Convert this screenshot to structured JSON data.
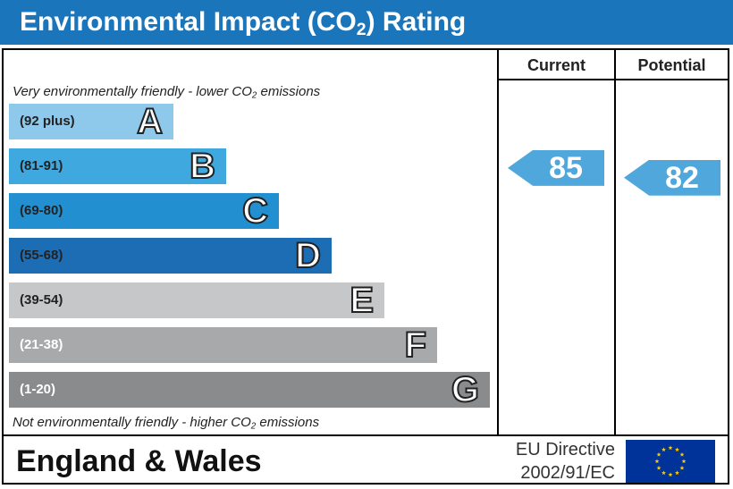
{
  "title_prefix": "Environmental Impact (CO",
  "title_sub": "2",
  "title_suffix": ") Rating",
  "columns": {
    "current": "Current",
    "potential": "Potential"
  },
  "top_note_prefix": "Very environmentally friendly - lower CO",
  "top_note_sub": "2",
  "top_note_suffix": " emissions",
  "bottom_note_prefix": "Not environmentally friendly - higher CO",
  "bottom_note_sub": "2",
  "bottom_note_suffix": " emissions",
  "chart_data": {
    "type": "bar",
    "categories": [
      "A",
      "B",
      "C",
      "D",
      "E",
      "F",
      "G"
    ],
    "bands": [
      {
        "letter": "A",
        "range": "(92 plus)",
        "min": 92,
        "max": 100,
        "color": "#8ec9ec",
        "text_color": "#222222"
      },
      {
        "letter": "B",
        "range": "(81-91)",
        "min": 81,
        "max": 91,
        "color": "#3fa9df",
        "text_color": "#222222"
      },
      {
        "letter": "C",
        "range": "(69-80)",
        "min": 69,
        "max": 80,
        "color": "#2290d0",
        "text_color": "#222222"
      },
      {
        "letter": "D",
        "range": "(55-68)",
        "min": 55,
        "max": 68,
        "color": "#1d6db5",
        "text_color": "#222222"
      },
      {
        "letter": "E",
        "range": "(39-54)",
        "min": 39,
        "max": 54,
        "color": "#c6c7c8",
        "text_color": "#222222"
      },
      {
        "letter": "F",
        "range": "(21-38)",
        "min": 21,
        "max": 38,
        "color": "#a8a9ab",
        "text_color": "#ffffff"
      },
      {
        "letter": "G",
        "range": "(1-20)",
        "min": 1,
        "max": 20,
        "color": "#8a8b8d",
        "text_color": "#ffffff"
      }
    ],
    "current": {
      "value": 85,
      "band": "B"
    },
    "potential": {
      "value": 82,
      "band": "B"
    },
    "arrow_color": "#4fa7dc"
  },
  "footer": {
    "region": "England & Wales",
    "directive_line1": "EU Directive",
    "directive_line2": "2002/91/EC",
    "flag_icon": "eu-flag-icon",
    "flag_color": "#003399",
    "star_color": "#ffcc00"
  }
}
